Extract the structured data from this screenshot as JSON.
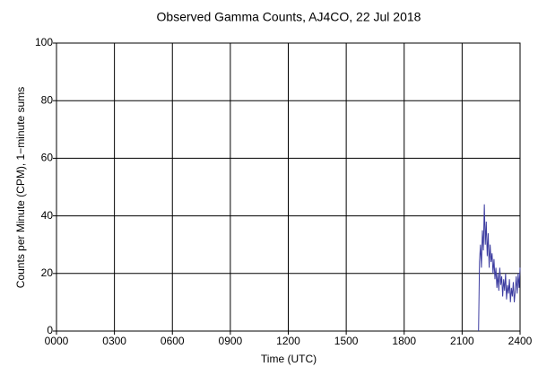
{
  "chart_data": {
    "type": "line",
    "title": "Observed Gamma Counts, AJ4CO, 22 Jul 2018",
    "x_label": "Time (UTC)",
    "y_label": "Counts per Minute (CPM), 1−minute sums",
    "x": [
      21.85,
      21.9,
      21.95,
      22.0,
      22.05,
      22.1,
      22.15,
      22.2,
      22.25,
      22.3,
      22.35,
      22.4,
      22.45,
      22.5,
      22.55,
      22.6,
      22.65,
      22.7,
      22.75,
      22.8,
      22.85,
      22.9,
      22.95,
      23.0,
      23.05,
      23.1,
      23.15,
      23.2,
      23.25,
      23.3,
      23.35,
      23.4,
      23.45,
      23.5,
      23.55,
      23.6,
      23.65,
      23.7,
      23.75,
      23.8,
      23.85,
      23.9,
      23.95,
      24.0
    ],
    "series": [
      {
        "color": "#3c3ca0",
        "values": [
          0,
          24,
          30,
          22,
          35,
          28,
          44,
          30,
          38,
          26,
          34,
          22,
          30,
          24,
          27,
          20,
          25,
          18,
          22,
          15,
          20,
          14,
          22,
          16,
          19,
          12,
          18,
          14,
          20,
          11,
          16,
          13,
          18,
          10,
          15,
          12,
          17,
          10,
          14,
          19,
          13,
          20,
          15,
          22
        ]
      }
    ],
    "xlim": [
      0,
      24
    ],
    "xticks": [
      {
        "value": 0,
        "label": "0000"
      },
      {
        "value": 3,
        "label": "0300"
      },
      {
        "value": 6,
        "label": "0600"
      },
      {
        "value": 9,
        "label": "0900"
      },
      {
        "value": 12,
        "label": "1200"
      },
      {
        "value": 15,
        "label": "1500"
      },
      {
        "value": 18,
        "label": "1800"
      },
      {
        "value": 21,
        "label": "2100"
      },
      {
        "value": 24,
        "label": "2400"
      }
    ],
    "ylim": [
      0,
      100
    ],
    "yticks": [
      0,
      20,
      40,
      60,
      80,
      100
    ],
    "grid": true
  }
}
